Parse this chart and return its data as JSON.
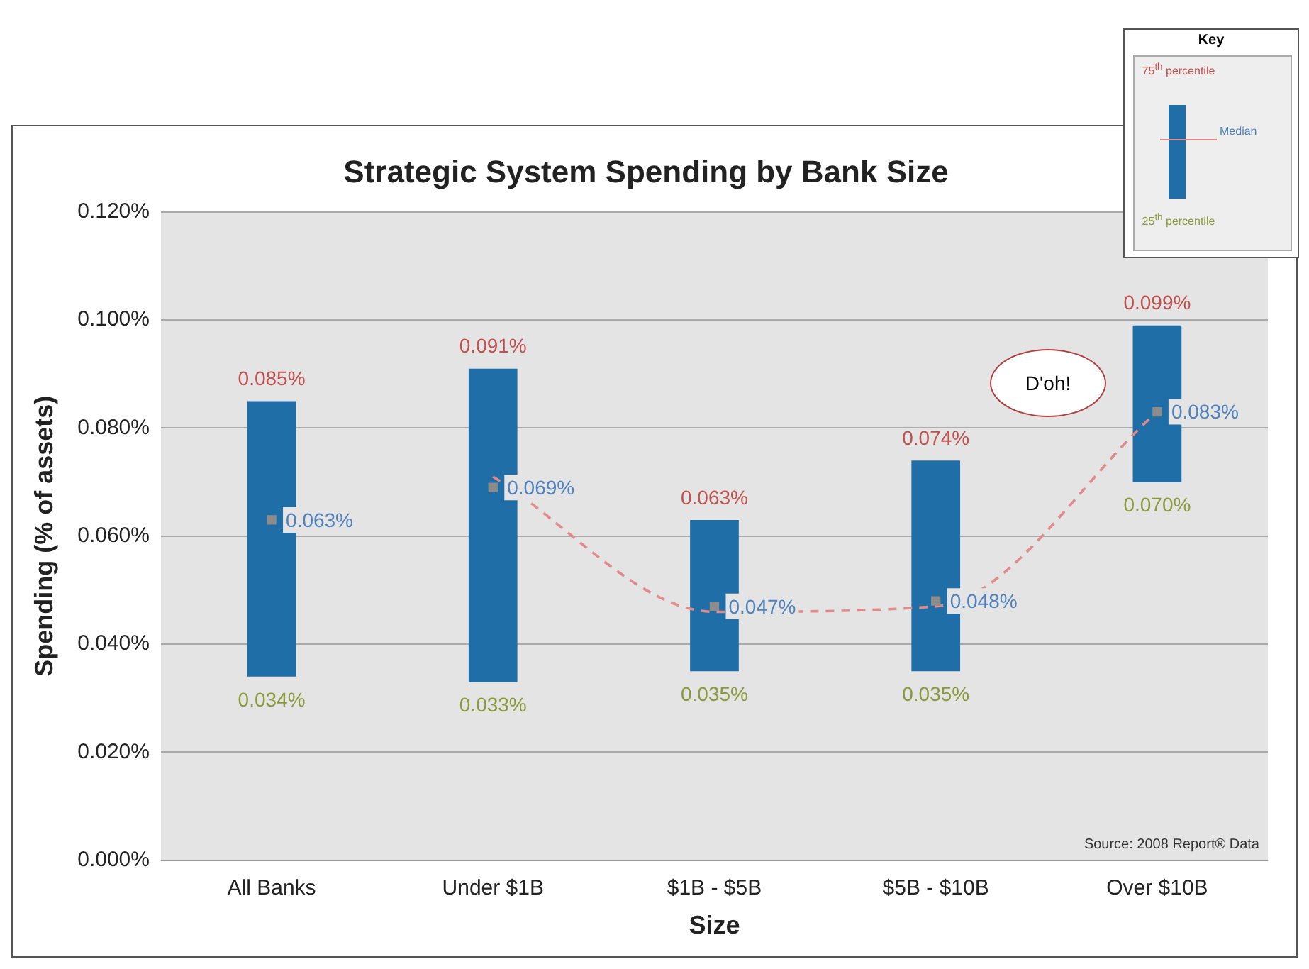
{
  "chart_data": {
    "type": "bar",
    "title": "Strategic System Spending by Bank Size",
    "xlabel": "Size",
    "ylabel": "Spending (% of assets)",
    "categories": [
      "All Banks",
      "Under $1B",
      "$1B - $5B",
      "$5B - $10B",
      "Over $10B"
    ],
    "series": [
      {
        "color": "#1f6ea8",
        "base": [
          0.034,
          0.033,
          0.035,
          0.035,
          0.07
        ],
        "values": [
          0.051,
          0.058,
          0.028,
          0.039,
          0.029
        ]
      },
      {
        "type": "scatter",
        "color": "#8c8c8c",
        "marker": "square",
        "values": [
          0.063,
          0.069,
          0.047,
          0.048,
          0.083
        ],
        "value_labels": [
          "0.063%",
          "0.069%",
          "0.047%",
          "0.048%",
          "0.083%"
        ]
      },
      {
        "type": "line",
        "color": "#e08a8a",
        "line_style": "dashed",
        "marker": "none",
        "values": [
          null,
          0.071,
          0.046,
          0.047,
          0.083
        ]
      }
    ],
    "ylim": [
      0,
      0.12
    ],
    "yticks": [
      {
        "value": 0,
        "label": "0.000%"
      },
      {
        "value": 0.02,
        "label": "0.020%"
      },
      {
        "value": 0.04,
        "label": "0.040%"
      },
      {
        "value": 0.06,
        "label": "0.060%"
      },
      {
        "value": 0.08,
        "label": "0.080%"
      },
      {
        "value": 0.1,
        "label": "0.100%"
      },
      {
        "value": 0.12,
        "label": "0.120%"
      }
    ],
    "grid": "y",
    "legend": false,
    "annotations": [
      "Source: 2008 Report® Data",
      "D'oh!",
      "Key",
      "75$^{th}$ percentile",
      "Median",
      "25$^{th}$ percentile",
      {
        "text": "0.085%",
        "x": "All Banks",
        "y": 0.085
      },
      {
        "text": "0.034%",
        "x": "All Banks",
        "y": 0.034
      },
      {
        "text": "0.091%",
        "x": "Under $1B",
        "y": 0.091
      },
      {
        "text": "0.033%",
        "x": "Under $1B",
        "y": 0.033
      },
      {
        "text": "0.063%",
        "x": "$1B - $5B",
        "y": 0.063
      },
      {
        "text": "0.035%",
        "x": "$1B - $5B",
        "y": 0.035
      },
      {
        "text": "0.074%",
        "x": "$5B - $10B",
        "y": 0.074
      },
      {
        "text": "0.035%",
        "x": "$5B - $10B",
        "y": 0.035
      },
      {
        "text": "0.099%",
        "x": "Over $10B",
        "y": 0.099
      },
      {
        "text": "0.070%",
        "x": "Over $10B",
        "y": 0.07
      }
    ]
  }
}
